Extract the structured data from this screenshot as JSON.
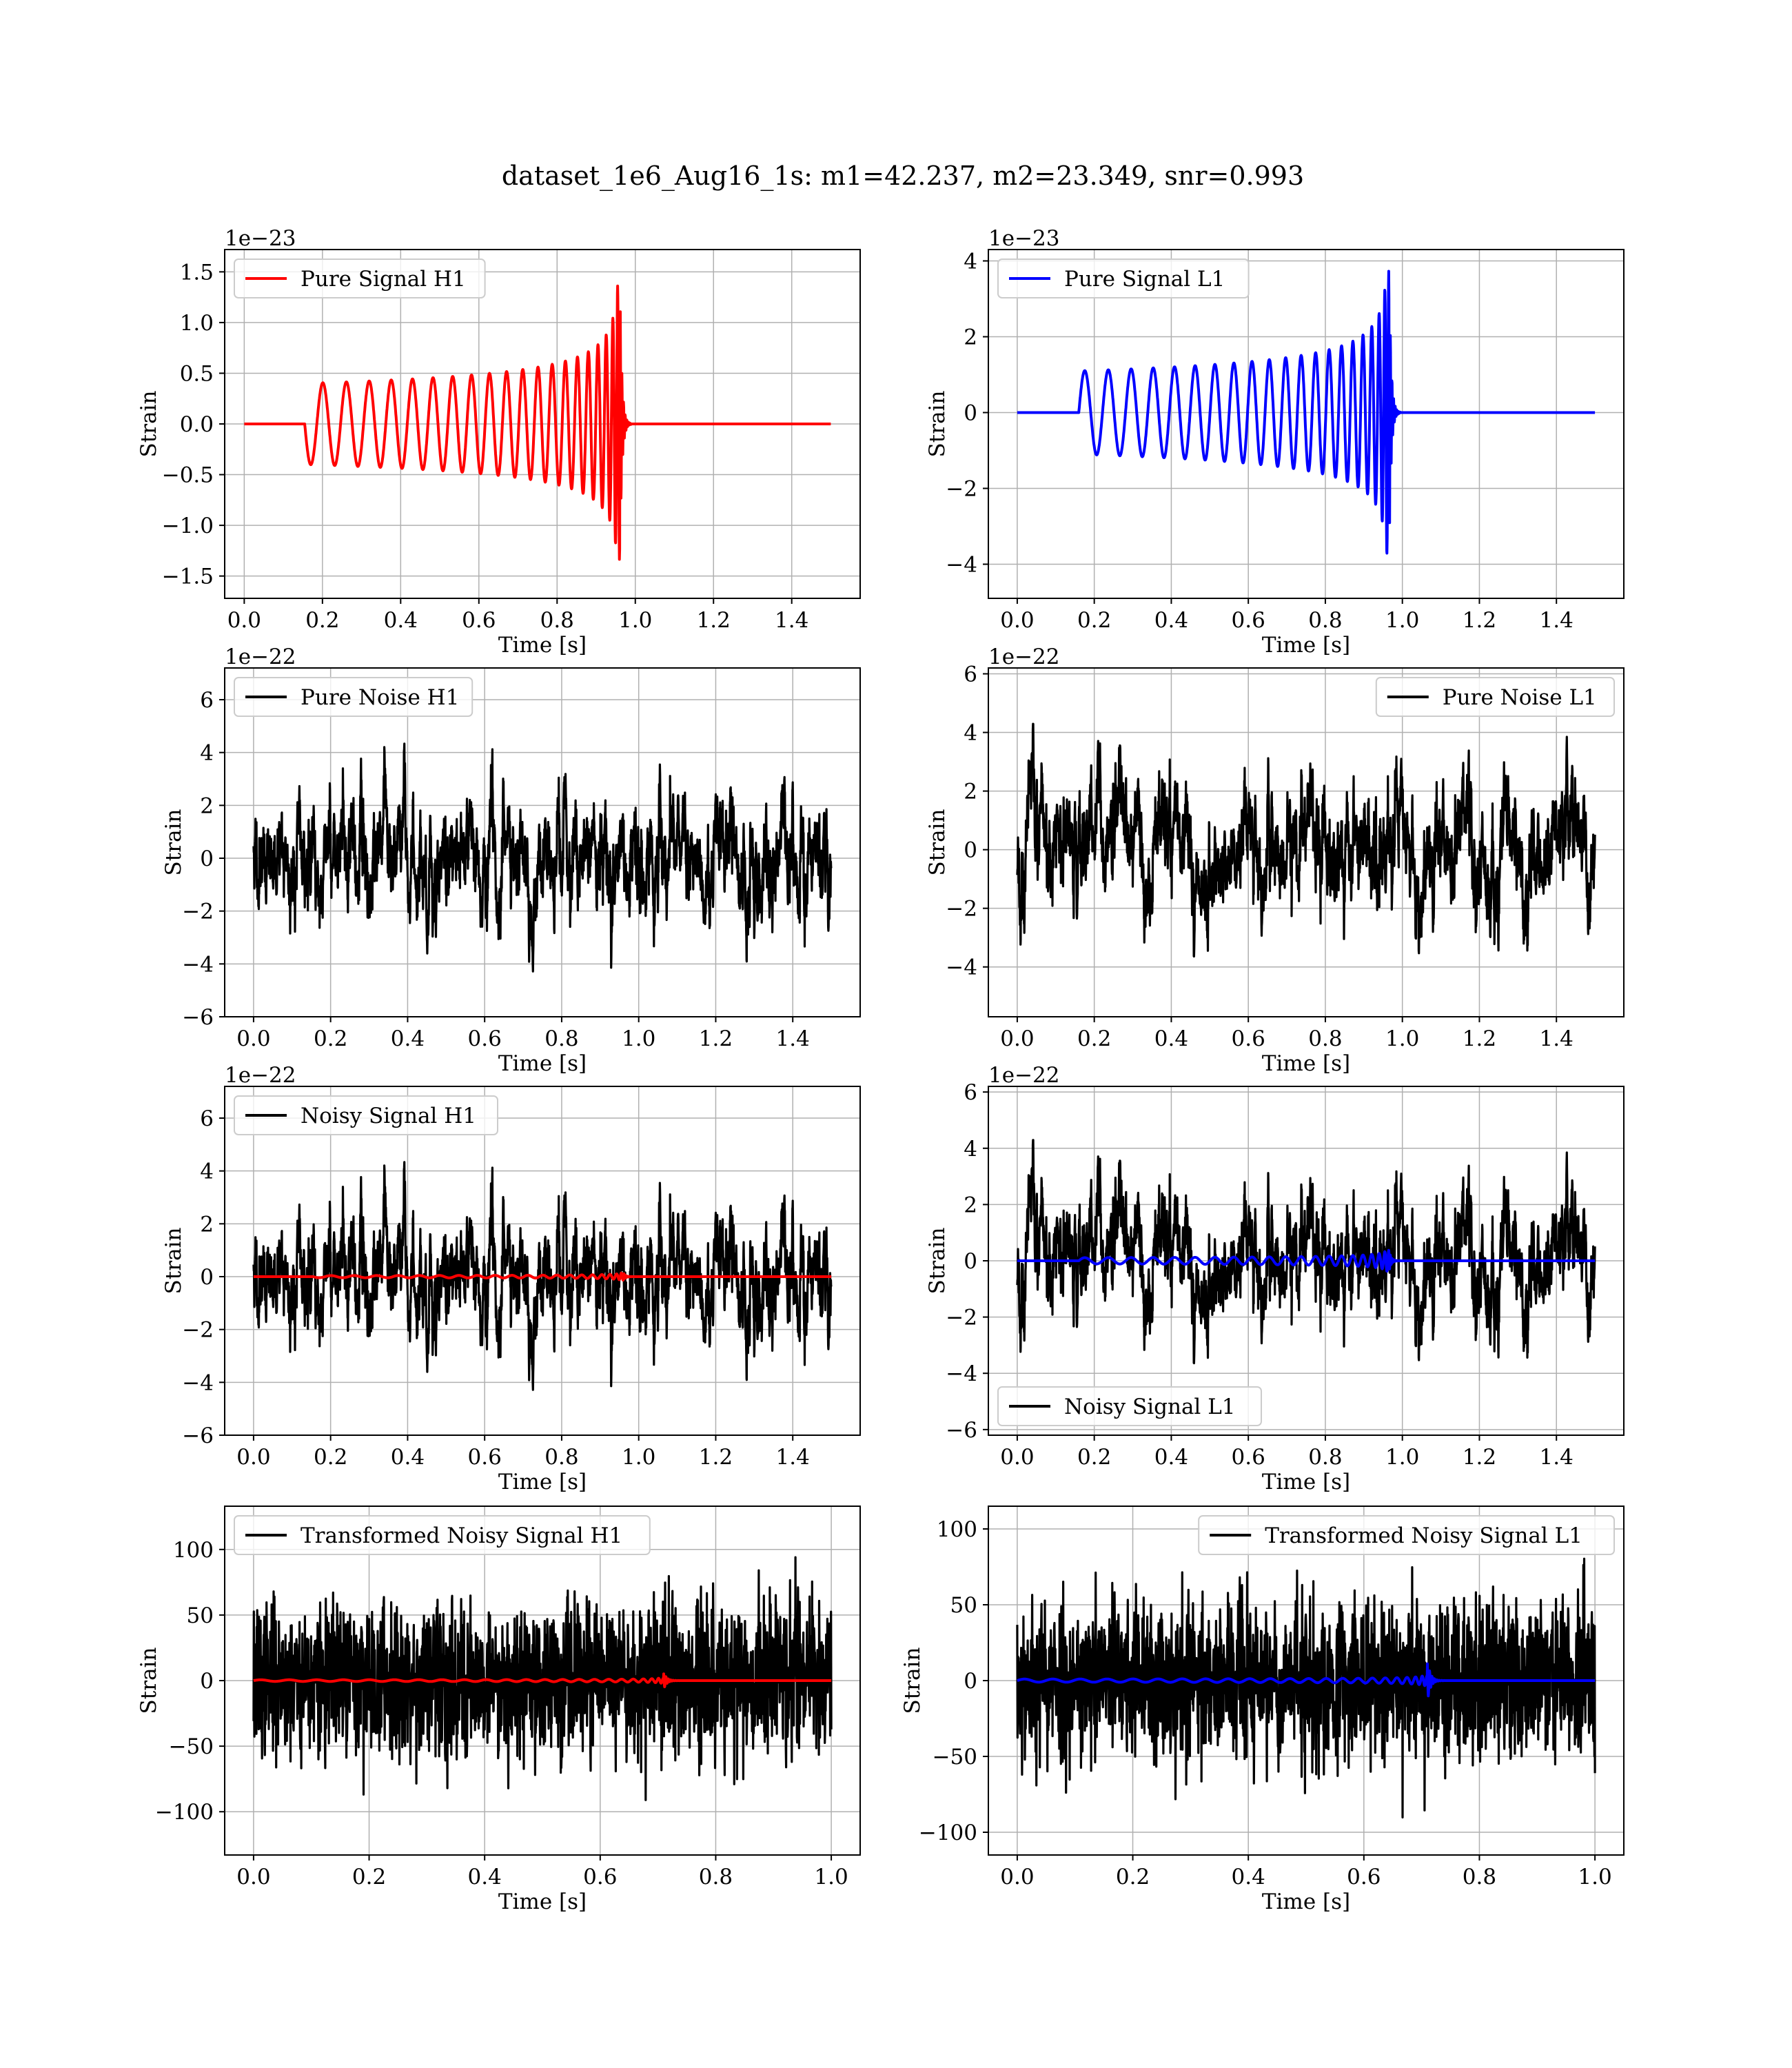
{
  "figure": {
    "suptitle": "dataset_1e6_Aug16_1s: m1=42.237, m2=23.349, snr=0.993"
  },
  "colors": {
    "h1_signal": "#ff0000",
    "l1_signal": "#0000ff",
    "noise": "#000000",
    "grid": "#b0b0b0"
  },
  "chart_data": [
    {
      "id": "pure-signal-h1",
      "type": "line",
      "xlabel": "Time [s]",
      "ylabel": "Strain",
      "offset_text": "1e−23",
      "xlim": [
        -0.05,
        1.575
      ],
      "ylim": [
        -1.72,
        1.72
      ],
      "xticks": [
        0.0,
        0.2,
        0.4,
        0.6,
        0.8,
        1.0,
        1.2,
        1.4
      ],
      "xtick_labels": [
        "0.0",
        "0.2",
        "0.4",
        "0.6",
        "0.8",
        "1.0",
        "1.2",
        "1.4"
      ],
      "yticks": [
        -1.5,
        -1.0,
        -0.5,
        0.0,
        0.5,
        1.0,
        1.5
      ],
      "ytick_labels": [
        "−1.5",
        "−1.0",
        "−0.5",
        "0.0",
        "0.5",
        "1.0",
        "1.5"
      ],
      "grid": true,
      "legend_position": "upper left",
      "series": [
        {
          "name": "Pure Signal H1",
          "color": "#ff0000",
          "kind": "chirp",
          "params": {
            "t0": 0.155,
            "tc": 0.96,
            "x_end": 1.5,
            "amp_start": 0.4,
            "amp_peak": 1.58,
            "f_start": 16,
            "phase_sign": -1
          }
        }
      ]
    },
    {
      "id": "pure-signal-l1",
      "type": "line",
      "xlabel": "Time [s]",
      "ylabel": "Strain",
      "offset_text": "1e−23",
      "xlim": [
        -0.075,
        1.575
      ],
      "ylim": [
        -4.9,
        4.3
      ],
      "xticks": [
        0.0,
        0.2,
        0.4,
        0.6,
        0.8,
        1.0,
        1.2,
        1.4
      ],
      "xtick_labels": [
        "0.0",
        "0.2",
        "0.4",
        "0.6",
        "0.8",
        "1.0",
        "1.2",
        "1.4"
      ],
      "yticks": [
        -4,
        -2,
        0,
        2,
        4
      ],
      "ytick_labels": [
        "−4",
        "−2",
        "0",
        "2",
        "4"
      ],
      "grid": true,
      "legend_position": "upper left",
      "series": [
        {
          "name": "Pure Signal L1",
          "color": "#0000ff",
          "kind": "chirp",
          "params": {
            "t0": 0.16,
            "tc": 0.965,
            "x_end": 1.5,
            "amp_start": 1.1,
            "amp_peak": 4.4,
            "f_start": 16,
            "phase_sign": 1
          }
        }
      ]
    },
    {
      "id": "pure-noise-h1",
      "type": "line",
      "xlabel": "Time [s]",
      "ylabel": "Strain",
      "offset_text": "1e−22",
      "xlim": [
        -0.075,
        1.575
      ],
      "ylim": [
        -6.0,
        7.2
      ],
      "xticks": [
        0.0,
        0.2,
        0.4,
        0.6,
        0.8,
        1.0,
        1.2,
        1.4
      ],
      "xtick_labels": [
        "0.0",
        "0.2",
        "0.4",
        "0.6",
        "0.8",
        "1.0",
        "1.2",
        "1.4"
      ],
      "yticks": [
        -6,
        -4,
        -2,
        0,
        2,
        4,
        6
      ],
      "ytick_labels": [
        "−6",
        "−4",
        "−2",
        "0",
        "2",
        "4",
        "6"
      ],
      "grid": true,
      "legend_position": "upper left",
      "series": [
        {
          "name": "Pure Noise H1",
          "color": "#000000",
          "kind": "noise",
          "params": {
            "x_end": 1.5,
            "sigma": 1.6,
            "max": 6.6,
            "min": -5.5,
            "seed": 11
          }
        }
      ]
    },
    {
      "id": "pure-noise-l1",
      "type": "line",
      "xlabel": "Time [s]",
      "ylabel": "Strain",
      "offset_text": "1e−22",
      "xlim": [
        -0.075,
        1.575
      ],
      "ylim": [
        -5.7,
        6.2
      ],
      "xticks": [
        0.0,
        0.2,
        0.4,
        0.6,
        0.8,
        1.0,
        1.2,
        1.4
      ],
      "xtick_labels": [
        "0.0",
        "0.2",
        "0.4",
        "0.6",
        "0.8",
        "1.0",
        "1.2",
        "1.4"
      ],
      "yticks": [
        -4,
        -2,
        0,
        2,
        4,
        6
      ],
      "ytick_labels": [
        "−4",
        "−2",
        "0",
        "2",
        "4",
        "6"
      ],
      "grid": true,
      "legend_position": "upper right",
      "series": [
        {
          "name": "Pure Noise L1",
          "color": "#000000",
          "kind": "noise",
          "params": {
            "x_end": 1.5,
            "sigma": 1.5,
            "max": 5.6,
            "min": -5.2,
            "seed": 23
          }
        }
      ]
    },
    {
      "id": "noisy-signal-h1",
      "type": "line",
      "xlabel": "Time [s]",
      "ylabel": "Strain",
      "offset_text": "1e−22",
      "xlim": [
        -0.075,
        1.575
      ],
      "ylim": [
        -6.0,
        7.2
      ],
      "xticks": [
        0.0,
        0.2,
        0.4,
        0.6,
        0.8,
        1.0,
        1.2,
        1.4
      ],
      "xtick_labels": [
        "0.0",
        "0.2",
        "0.4",
        "0.6",
        "0.8",
        "1.0",
        "1.2",
        "1.4"
      ],
      "yticks": [
        -6,
        -4,
        -2,
        0,
        2,
        4,
        6
      ],
      "ytick_labels": [
        "−6",
        "−4",
        "−2",
        "0",
        "2",
        "4",
        "6"
      ],
      "grid": true,
      "legend_position": "upper left",
      "series": [
        {
          "name": "Noisy Signal H1",
          "color": "#000000",
          "kind": "noise",
          "params": {
            "x_end": 1.5,
            "sigma": 1.6,
            "max": 6.6,
            "min": -5.3,
            "seed": 11
          }
        },
        {
          "color": "#ff0000",
          "kind": "chirp",
          "params": {
            "t0": 0.155,
            "tc": 0.96,
            "x_end": 1.5,
            "amp_start": 0.04,
            "amp_peak": 0.16,
            "f_start": 16,
            "phase_sign": -1
          }
        }
      ]
    },
    {
      "id": "noisy-signal-l1",
      "type": "line",
      "xlabel": "Time [s]",
      "ylabel": "Strain",
      "offset_text": "1e−22",
      "xlim": [
        -0.075,
        1.575
      ],
      "ylim": [
        -6.2,
        6.2
      ],
      "xticks": [
        0.0,
        0.2,
        0.4,
        0.6,
        0.8,
        1.0,
        1.2,
        1.4
      ],
      "xtick_labels": [
        "0.0",
        "0.2",
        "0.4",
        "0.6",
        "0.8",
        "1.0",
        "1.2",
        "1.4"
      ],
      "yticks": [
        -6,
        -4,
        -2,
        0,
        2,
        4,
        6
      ],
      "ytick_labels": [
        "−6",
        "−4",
        "−2",
        "0",
        "2",
        "4",
        "6"
      ],
      "grid": true,
      "legend_position": "lower left",
      "series": [
        {
          "name": "Noisy Signal L1",
          "color": "#000000",
          "kind": "noise",
          "params": {
            "x_end": 1.5,
            "sigma": 1.5,
            "max": 5.6,
            "min": -5.6,
            "seed": 23
          }
        },
        {
          "color": "#0000ff",
          "kind": "chirp",
          "params": {
            "t0": 0.16,
            "tc": 0.965,
            "x_end": 1.5,
            "amp_start": 0.11,
            "amp_peak": 0.44,
            "f_start": 16,
            "phase_sign": 1
          }
        }
      ]
    },
    {
      "id": "transformed-noisy-signal-h1",
      "type": "line",
      "xlabel": "Time [s]",
      "ylabel": "Strain",
      "offset_text": "",
      "xlim": [
        -0.05,
        1.05
      ],
      "ylim": [
        -133,
        133
      ],
      "xticks": [
        0.0,
        0.2,
        0.4,
        0.6,
        0.8,
        1.0
      ],
      "xtick_labels": [
        "0.0",
        "0.2",
        "0.4",
        "0.6",
        "0.8",
        "1.0"
      ],
      "yticks": [
        -100,
        -50,
        0,
        50,
        100
      ],
      "ytick_labels": [
        "−100",
        "−50",
        "0",
        "50",
        "100"
      ],
      "grid": true,
      "legend_position": "upper left",
      "series": [
        {
          "name": "Transformed Noisy Signal H1",
          "color": "#000000",
          "kind": "white_noise",
          "params": {
            "x_end": 1.0,
            "sigma": 28,
            "max": 120,
            "min": -120,
            "seed": 37
          }
        },
        {
          "color": "#ff0000",
          "kind": "chirp",
          "params": {
            "t0": 0.0,
            "tc": 0.71,
            "x_end": 1.0,
            "amp_start": 0.6,
            "amp_peak": 6.5,
            "f_start": 20,
            "phase_sign": 1
          }
        }
      ]
    },
    {
      "id": "transformed-noisy-signal-l1",
      "type": "line",
      "xlabel": "Time [s]",
      "ylabel": "Strain",
      "offset_text": "",
      "xlim": [
        -0.05,
        1.05
      ],
      "ylim": [
        -115,
        115
      ],
      "xticks": [
        0.0,
        0.2,
        0.4,
        0.6,
        0.8,
        1.0
      ],
      "xtick_labels": [
        "0.0",
        "0.2",
        "0.4",
        "0.6",
        "0.8",
        "1.0"
      ],
      "yticks": [
        -100,
        -50,
        0,
        50,
        100
      ],
      "ytick_labels": [
        "−100",
        "−50",
        "0",
        "50",
        "100"
      ],
      "grid": true,
      "legend_position": "upper right",
      "series": [
        {
          "name": "Transformed Noisy Signal L1",
          "color": "#000000",
          "kind": "white_noise",
          "params": {
            "x_end": 1.0,
            "sigma": 26,
            "max": 107,
            "min": -107,
            "seed": 53
          }
        },
        {
          "color": "#0000ff",
          "kind": "chirp",
          "params": {
            "t0": 0.0,
            "tc": 0.71,
            "x_end": 1.0,
            "amp_start": 1.0,
            "amp_peak": 14,
            "f_start": 20,
            "phase_sign": 1
          }
        }
      ]
    }
  ]
}
